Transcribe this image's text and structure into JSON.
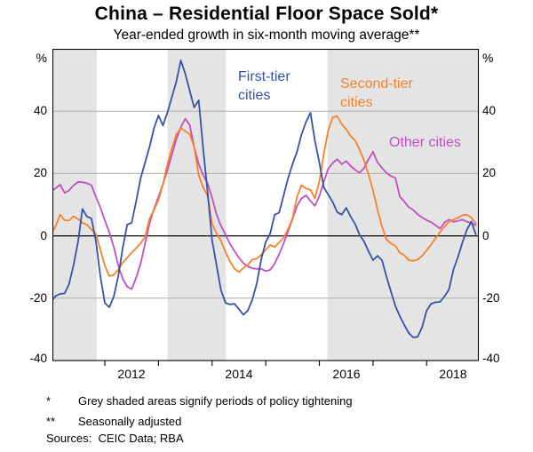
{
  "title": "China – Residential Floor Space Sold*",
  "subtitle": "Year-ended growth in six-month moving average**",
  "footnotes": [
    {
      "symbol": "*",
      "text": "Grey shaded areas signify periods of policy tightening"
    },
    {
      "symbol": "**",
      "text": "Seasonally adjusted"
    }
  ],
  "sources": "Sources:  CEIC Data; RBA",
  "colors": {
    "first_tier": "#3552a6",
    "second_tier": "#f5822a",
    "other": "#c14ec2",
    "shaded_band": "#e4e4e4",
    "gridline": "#ababab",
    "axis": "#000000"
  },
  "chart_data": {
    "type": "line",
    "title": "China – Residential Floor Space Sold",
    "subtitle": "Year-ended growth in six-month moving average, per cent",
    "unit_left": "%",
    "unit_right": "%",
    "x_start_year": 2011.0,
    "x_step_years": 0.0833333,
    "x_range": [
      2011.0,
      2018.96
    ],
    "ylim": [
      -40,
      60
    ],
    "grid": true,
    "y_axis": {
      "gridlines": [
        40,
        20,
        0,
        -20
      ],
      "tick_labels": [
        "40",
        "20",
        "0",
        "-20",
        "-40"
      ]
    },
    "x_axis": {
      "tick_years": [
        2012,
        2013,
        2014,
        2015,
        2016,
        2017,
        2018
      ],
      "year_labels": [
        "2012",
        "2014",
        "2016",
        "2018"
      ],
      "year_label_positions": [
        2012.5,
        2014.5,
        2016.5,
        2018.5
      ]
    },
    "shaded_bands": [
      {
        "from": 2011.0,
        "to": 2011.85,
        "meaning": "policy tightening"
      },
      {
        "from": 2013.17,
        "to": 2014.26,
        "meaning": "policy tightening"
      },
      {
        "from": 2016.15,
        "to": 2019.0,
        "meaning": "policy tightening"
      }
    ],
    "series": [
      {
        "name": "Other cities",
        "label": "Other cities",
        "color": "#c14ec2",
        "values": [
          14.3,
          15.3,
          16.4,
          13.8,
          14.6,
          16.2,
          17.3,
          17.2,
          16.9,
          16.3,
          12.6,
          9.0,
          5.0,
          1.2,
          -3.6,
          -9.5,
          -13.8,
          -16.3,
          -17.1,
          -13.5,
          -8.9,
          -2.5,
          4.0,
          8.6,
          12.5,
          16.6,
          21.0,
          26.0,
          31.0,
          34.8,
          37.6,
          35.5,
          28.5,
          23.0,
          19.5,
          16.8,
          12.2,
          6.8,
          3.2,
          0.4,
          -2.6,
          -4.9,
          -7.0,
          -8.8,
          -9.8,
          -10.4,
          -10.6,
          -10.6,
          -11.3,
          -10.9,
          -8.9,
          -5.9,
          -2.4,
          1.4,
          5.4,
          9.6,
          12.0,
          13.0,
          11.2,
          9.6,
          12.8,
          17.4,
          21.6,
          23.4,
          24.6,
          23.0,
          24.0,
          22.4,
          21.2,
          20.2,
          21.8,
          24.6,
          27.0,
          23.6,
          21.8,
          20.2,
          19.2,
          18.6,
          12.6,
          11.0,
          9.2,
          8.3,
          6.9,
          5.9,
          5.0,
          4.4,
          3.4,
          2.3,
          4.3,
          5.2,
          4.5,
          4.8,
          5.2,
          4.5,
          4.2,
          3.4
        ]
      },
      {
        "name": "Second-tier cities",
        "label": "Second-tier\ncities",
        "color": "#f5822a",
        "values": [
          0.6,
          3.2,
          6.8,
          5.0,
          4.9,
          6.3,
          5.4,
          4.2,
          3.6,
          2.0,
          0.6,
          -4.5,
          -9.5,
          -12.9,
          -12.5,
          -10.9,
          -8.6,
          -7.0,
          -5.4,
          -4.0,
          -2.4,
          -0.4,
          5.5,
          8.3,
          11.5,
          16.5,
          22.9,
          28.0,
          32.5,
          34.6,
          33.6,
          32.6,
          28.5,
          19.5,
          15.5,
          12.8,
          3.8,
          0.7,
          -1.6,
          -5.2,
          -8.2,
          -10.6,
          -11.6,
          -10.3,
          -9.3,
          -7.6,
          -7.3,
          -6.1,
          -4.5,
          -2.9,
          -3.6,
          -2.1,
          -0.6,
          2.2,
          5.6,
          12.5,
          16.3,
          15.2,
          14.8,
          12.0,
          17.5,
          26.5,
          34.0,
          38.0,
          38.4,
          35.8,
          34.2,
          32.0,
          30.6,
          27.7,
          24.2,
          19.8,
          14.5,
          8.4,
          3.0,
          -1.2,
          -2.4,
          -3.2,
          -5.4,
          -6.2,
          -7.8,
          -8.0,
          -7.6,
          -6.4,
          -4.6,
          -2.8,
          -0.8,
          1.2,
          3.0,
          4.5,
          5.2,
          5.8,
          6.6,
          6.8,
          5.8,
          4.0
        ]
      },
      {
        "name": "First-tier cities",
        "label": "First-tier\ncities",
        "color": "#3552a6",
        "values": [
          -21.0,
          -19.3,
          -18.6,
          -18.5,
          -15.5,
          -9.4,
          -2.0,
          8.6,
          6.2,
          5.6,
          -1.5,
          -13.0,
          -21.5,
          -22.9,
          -19.5,
          -13.0,
          -4.0,
          3.6,
          4.2,
          11.0,
          18.5,
          23.5,
          28.5,
          34.5,
          38.6,
          35.4,
          39.5,
          44.5,
          49.5,
          56.3,
          52.0,
          46.5,
          41.2,
          43.5,
          28.0,
          14.0,
          -1.5,
          -9.5,
          -17.5,
          -21.5,
          -22.0,
          -21.8,
          -23.5,
          -25.3,
          -24.0,
          -20.5,
          -15.2,
          -7.5,
          -2.0,
          0.8,
          6.8,
          7.4,
          13.0,
          18.5,
          23.0,
          27.0,
          32.5,
          36.5,
          39.5,
          30.5,
          23.5,
          15.5,
          13.2,
          10.8,
          7.6,
          6.8,
          9.0,
          6.2,
          3.8,
          0.3,
          -1.8,
          -5.0,
          -7.8,
          -6.4,
          -7.8,
          -13.0,
          -17.8,
          -22.5,
          -25.8,
          -28.6,
          -31.2,
          -32.6,
          -32.4,
          -29.3,
          -24.0,
          -21.8,
          -21.3,
          -21.2,
          -19.4,
          -17.2,
          -10.8,
          -6.8,
          -2.2,
          2.0,
          4.6,
          0.5
        ]
      }
    ],
    "legend_position": "inline-labels"
  }
}
